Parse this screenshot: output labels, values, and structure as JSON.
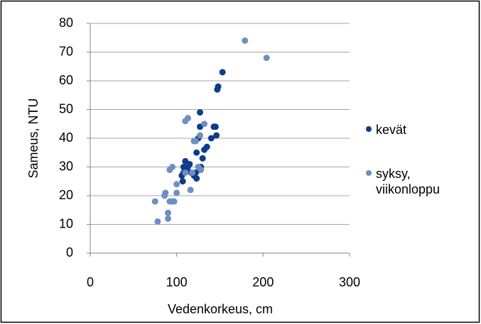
{
  "chart_data": {
    "type": "scatter",
    "xlabel": "Vedenkorkeus, cm",
    "ylabel": "Sameus, NTU",
    "xlim": [
      0,
      300
    ],
    "xticks": [
      0,
      100,
      200,
      300
    ],
    "ylim": [
      0,
      80
    ],
    "yticks": [
      0,
      10,
      20,
      30,
      40,
      50,
      60,
      70,
      80
    ],
    "grid": true,
    "legend": "right",
    "series": [
      {
        "name": "kevät",
        "color": "#0d3d8a",
        "x": [
          153,
          148,
          147,
          145,
          143,
          146,
          140,
          135,
          132,
          130,
          127,
          127,
          125,
          123,
          128,
          127,
          122,
          120,
          123,
          115,
          113,
          110,
          108,
          108,
          106,
          107,
          112,
          117
        ],
        "y": [
          63,
          58,
          57,
          44,
          44,
          41,
          40,
          37,
          36,
          33,
          49,
          44,
          40,
          35,
          30,
          29,
          28,
          27,
          26,
          31,
          30,
          32,
          30,
          28,
          27,
          25,
          29,
          28
        ]
      },
      {
        "name": "syksy, viikonloppu",
        "color": "#6f8fc2",
        "x": [
          179,
          204,
          113,
          110,
          132,
          127,
          120,
          122,
          125,
          128,
          110,
          118,
          116,
          95,
          92,
          100,
          100,
          87,
          86,
          95,
          92,
          75,
          90,
          90,
          78,
          97
        ],
        "y": [
          74,
          68,
          47,
          46,
          45,
          41,
          39,
          39,
          30,
          29,
          28,
          28,
          22,
          30,
          29,
          24,
          21,
          21,
          20,
          18,
          18,
          18,
          14,
          12,
          11,
          18
        ]
      }
    ]
  }
}
